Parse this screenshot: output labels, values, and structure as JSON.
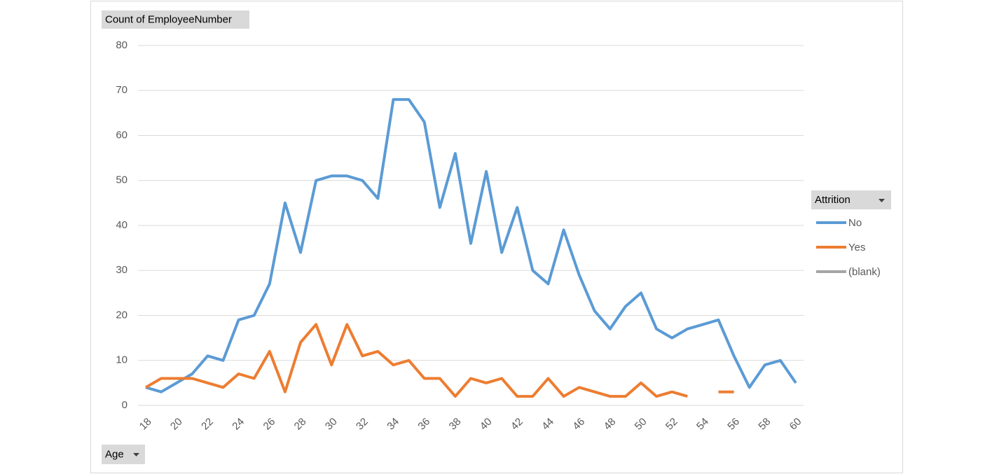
{
  "chart_data": {
    "type": "line",
    "y_axis_label": "Count of EmployeeNumber",
    "x_axis_label": "Age",
    "legend_title": "Attrition",
    "legend": "right",
    "grid": true,
    "x": [
      18,
      19,
      20,
      21,
      22,
      23,
      24,
      25,
      26,
      27,
      28,
      29,
      30,
      31,
      32,
      33,
      34,
      35,
      36,
      37,
      38,
      39,
      40,
      41,
      42,
      43,
      44,
      45,
      46,
      47,
      48,
      49,
      50,
      51,
      52,
      53,
      54,
      55,
      56,
      57,
      58,
      59,
      60
    ],
    "xlim": [
      17.5,
      60.5
    ],
    "xticks": [
      18,
      20,
      22,
      24,
      26,
      28,
      30,
      32,
      34,
      36,
      38,
      40,
      42,
      44,
      46,
      48,
      50,
      52,
      54,
      56,
      58,
      60
    ],
    "ylim": [
      0,
      80
    ],
    "yticks": [
      0,
      10,
      20,
      30,
      40,
      50,
      60,
      70,
      80
    ],
    "series": [
      {
        "name": "No",
        "color": "#5b9bd5",
        "values": [
          4,
          3,
          5,
          7,
          11,
          10,
          19,
          20,
          27,
          45,
          34,
          50,
          51,
          51,
          50,
          46,
          68,
          68,
          63,
          44,
          56,
          36,
          52,
          34,
          44,
          30,
          27,
          39,
          29,
          21,
          17,
          22,
          25,
          17,
          15,
          17,
          18,
          19,
          11,
          4,
          9,
          10,
          5
        ]
      },
      {
        "name": "Yes",
        "color": "#ed7d31",
        "values": [
          4,
          6,
          6,
          6,
          5,
          4,
          7,
          6,
          12,
          3,
          14,
          18,
          9,
          18,
          11,
          12,
          9,
          10,
          6,
          6,
          2,
          6,
          5,
          6,
          2,
          2,
          6,
          2,
          4,
          3,
          2,
          2,
          5,
          2,
          3,
          2,
          null,
          3,
          3,
          null,
          null,
          null,
          null
        ]
      },
      {
        "name": "(blank)",
        "color": "#a5a5a5",
        "values": [
          null,
          null,
          null,
          null,
          null,
          null,
          null,
          null,
          null,
          null,
          null,
          null,
          null,
          null,
          null,
          null,
          null,
          null,
          null,
          null,
          null,
          null,
          null,
          null,
          null,
          null,
          null,
          null,
          null,
          null,
          null,
          null,
          null,
          null,
          null,
          null,
          null,
          null,
          null,
          null,
          null,
          null,
          null
        ]
      }
    ]
  }
}
